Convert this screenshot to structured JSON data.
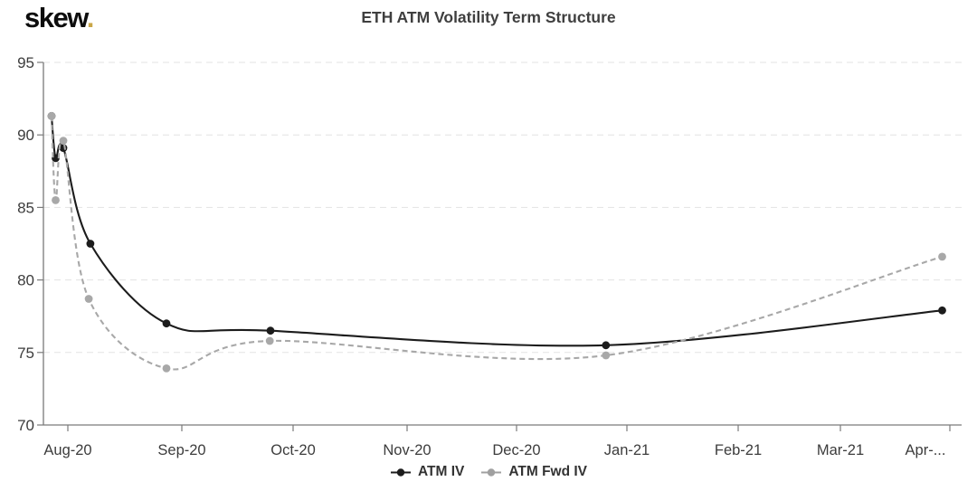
{
  "logo": {
    "text": "skew",
    "dot": ".",
    "dot_color": "#c9a648"
  },
  "title": "ETH ATM Volatility Term Structure",
  "chart_data": {
    "type": "line",
    "title": "ETH ATM Volatility Term Structure",
    "x_unit": "months (0 = Aug-20 tick, fractional = position within month)",
    "x_tick_labels": [
      "Aug-20",
      "Sep-20",
      "Oct-20",
      "Nov-20",
      "Dec-20",
      "Jan-21",
      "Feb-21",
      "Mar-21",
      "Apr-..."
    ],
    "x_tick_positions": [
      0,
      1,
      2,
      3,
      4,
      5,
      6,
      7,
      8
    ],
    "y_tick_labels": [
      "70",
      "75",
      "80",
      "85",
      "90",
      "95"
    ],
    "y_ticks": [
      70,
      75,
      80,
      85,
      90,
      95
    ],
    "ylim": [
      70,
      95
    ],
    "grid": "horizontal dashed lines at each y tick, light gray",
    "legend_position": "bottom-center",
    "series": [
      {
        "name": "ATM IV",
        "color": "#1c1c1c",
        "dash": "solid",
        "marker": "circle",
        "points": [
          [
            -0.143,
            91.3
          ],
          [
            -0.107,
            88.4
          ],
          [
            -0.04,
            89.1
          ],
          [
            0.198,
            82.5
          ],
          [
            0.865,
            77.0
          ],
          [
            1.797,
            76.5
          ],
          [
            4.81,
            75.5
          ],
          [
            7.93,
            77.9
          ]
        ]
      },
      {
        "name": "ATM Fwd IV",
        "color": "#a8a8a8",
        "dash": "dashed",
        "marker": "circle",
        "points": [
          [
            -0.143,
            91.3
          ],
          [
            -0.107,
            85.5
          ],
          [
            -0.04,
            89.6
          ],
          [
            0.183,
            78.7
          ],
          [
            0.865,
            73.9
          ],
          [
            1.79,
            75.8
          ],
          [
            4.81,
            74.8
          ],
          [
            7.93,
            81.6
          ]
        ]
      }
    ]
  },
  "legend": {
    "items": [
      {
        "label": "ATM IV",
        "color": "#1c1c1c"
      },
      {
        "label": "ATM Fwd IV",
        "color": "#a0a0a0"
      }
    ]
  },
  "colors": {
    "background": "#ffffff",
    "axis": "#7a7a7a",
    "grid": "#e3e3e3",
    "tick_label": "#3c3c3c",
    "title": "#3f3f3f",
    "legend_text": "#333333"
  }
}
